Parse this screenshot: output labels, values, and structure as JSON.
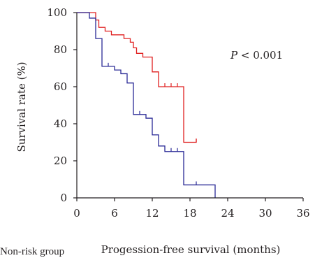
{
  "chart_data": {
    "type": "line",
    "step": true,
    "xlabel": "Progession-free survival (months)",
    "ylabel": "Survival rate (%)",
    "xlim": [
      0,
      36
    ],
    "ylim": [
      0,
      100
    ],
    "xticks": [
      0,
      6,
      12,
      18,
      24,
      30,
      36
    ],
    "yticks": [
      0,
      20,
      40,
      60,
      80,
      100
    ],
    "grid": false,
    "annotation": {
      "italic": "P",
      "rest": " < 0.001"
    },
    "series": [
      {
        "color": "#e02020",
        "steps": [
          [
            0,
            100
          ],
          [
            3,
            96
          ],
          [
            3.5,
            92
          ],
          [
            4.5,
            90
          ],
          [
            5.5,
            88
          ],
          [
            7.5,
            86
          ],
          [
            8.5,
            84
          ],
          [
            9,
            81
          ],
          [
            9.5,
            78
          ],
          [
            10.5,
            76
          ],
          [
            12,
            68
          ],
          [
            13,
            60
          ],
          [
            17,
            30
          ],
          [
            19,
            32
          ]
        ],
        "end": 19,
        "censored": [
          [
            14,
            60
          ],
          [
            15,
            60
          ],
          [
            16,
            60
          ],
          [
            19,
            30
          ]
        ]
      },
      {
        "color": "#2a2a96",
        "steps": [
          [
            0,
            100
          ],
          [
            2,
            97
          ],
          [
            3,
            86
          ],
          [
            4,
            71
          ],
          [
            6,
            69
          ],
          [
            7,
            67
          ],
          [
            8,
            62
          ],
          [
            9,
            56
          ],
          [
            9,
            45
          ],
          [
            11,
            43
          ],
          [
            12,
            34
          ],
          [
            13,
            28
          ],
          [
            14,
            25
          ],
          [
            17,
            7
          ],
          [
            22,
            0
          ]
        ],
        "end": 22,
        "censored": [
          [
            5,
            71
          ],
          [
            10,
            45
          ],
          [
            15,
            25
          ],
          [
            16,
            25
          ],
          [
            19,
            7
          ]
        ]
      }
    ]
  },
  "footer_text": "Non-risk group"
}
